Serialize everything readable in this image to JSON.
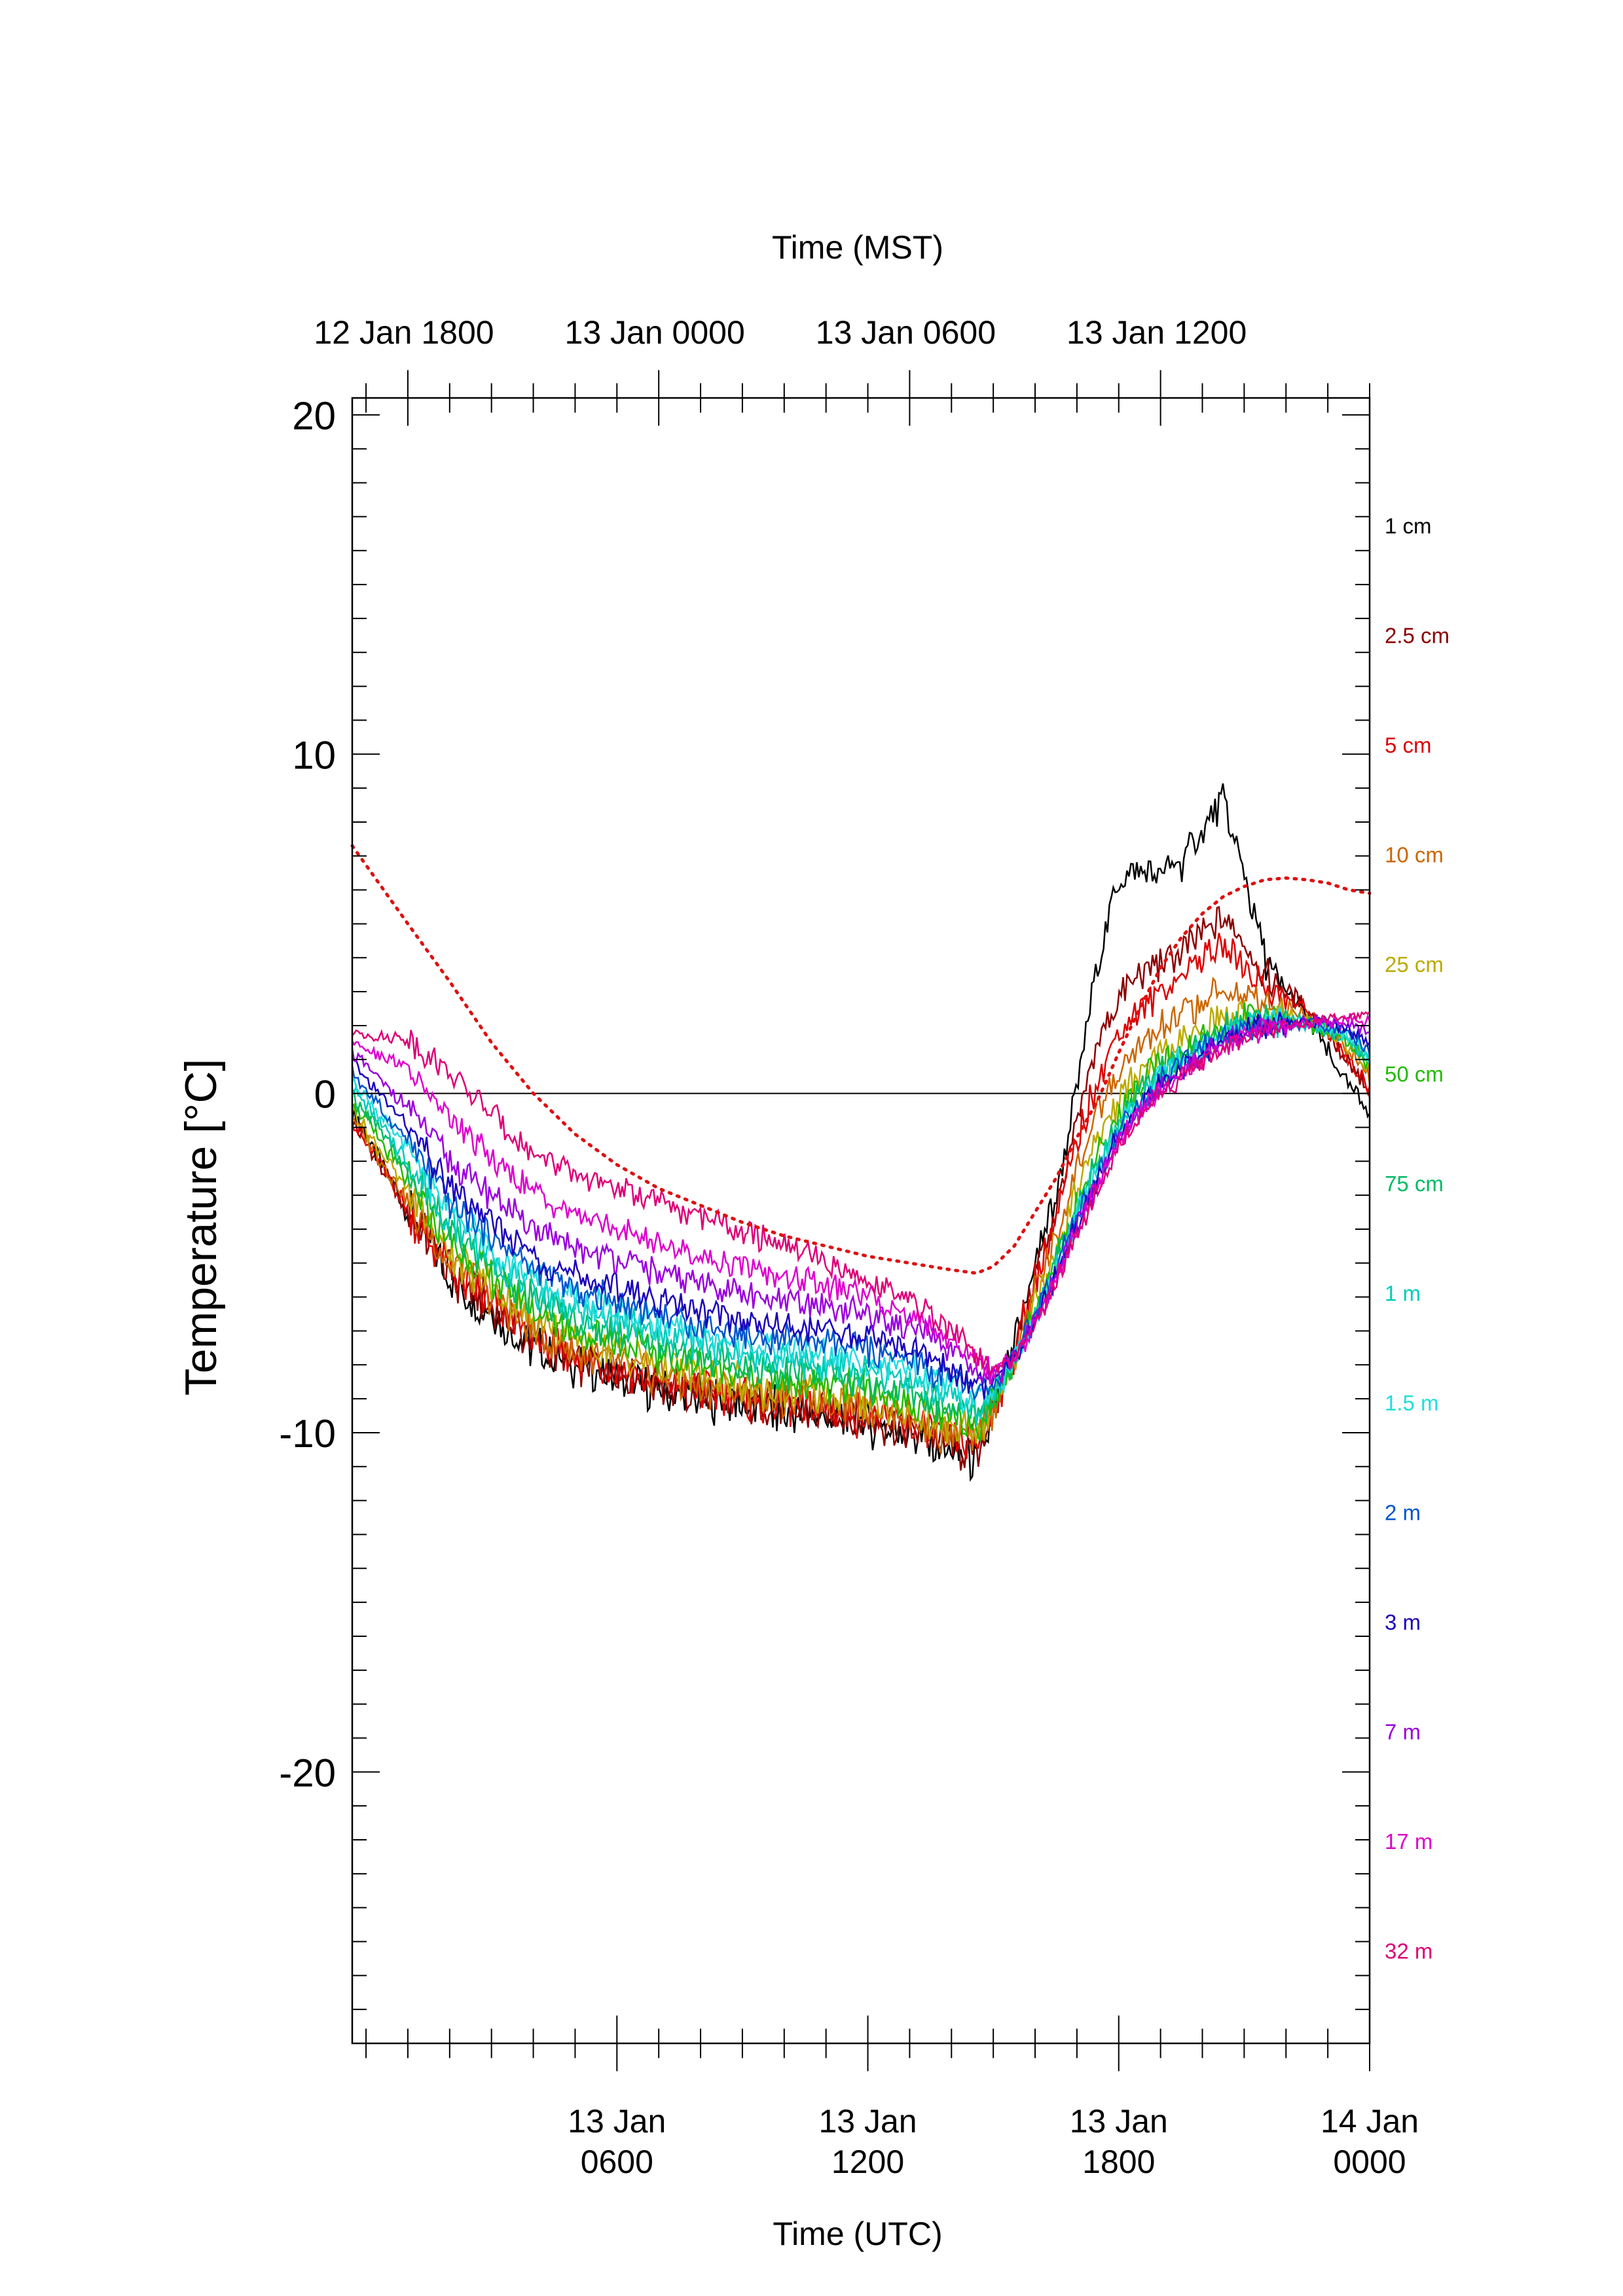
{
  "chart_data": {
    "type": "line",
    "ylabel": "Temperature [°C]",
    "xlabel_bottom": "Time (UTC)",
    "xlabel_top": "Time (MST)",
    "ylim": [
      -28,
      20.5
    ],
    "xlim_utc_hours": [
      -0.33,
      24
    ],
    "y_ticks": [
      {
        "value": 20,
        "label": "20"
      },
      {
        "value": 10,
        "label": "10"
      },
      {
        "value": 0,
        "label": "0"
      },
      {
        "value": -10,
        "label": "-10"
      },
      {
        "value": -20,
        "label": "-20"
      }
    ],
    "bottom_ticks": [
      {
        "utc_hour": 6,
        "line1": "13 Jan",
        "line2": "0600"
      },
      {
        "utc_hour": 12,
        "line1": "13 Jan",
        "line2": "1200"
      },
      {
        "utc_hour": 18,
        "line1": "13 Jan",
        "line2": "1800"
      },
      {
        "utc_hour": 24,
        "line1": "14 Jan",
        "line2": "0000"
      }
    ],
    "top_ticks": [
      {
        "utc_hour": 1,
        "label": "12 Jan 1800"
      },
      {
        "utc_hour": 7,
        "label": "13 Jan 0000"
      },
      {
        "utc_hour": 13,
        "label": "13 Jan 0600"
      },
      {
        "utc_hour": 19,
        "label": "13 Jan 1200"
      }
    ],
    "reference_line": {
      "y": 0
    },
    "legend_placement": "right",
    "x_utc_hours": [
      -0.33,
      1,
      2,
      3,
      4,
      5,
      6,
      7,
      8,
      9,
      10,
      11,
      12,
      13,
      14,
      14.6,
      15,
      15.5,
      16,
      16.5,
      17,
      17.5,
      18,
      18.5,
      19,
      19.5,
      20,
      20.5,
      21,
      21.5,
      22,
      22.5,
      23,
      23.5,
      24
    ],
    "series": [
      {
        "name": "1 cm",
        "color": "#000000",
        "values": [
          -0.5,
          -3.5,
          -5.5,
          -6.5,
          -7.5,
          -8,
          -8.3,
          -8.8,
          -9,
          -9.2,
          -9.4,
          -9.5,
          -9.7,
          -10,
          -10.6,
          -10.8,
          -9.5,
          -7.5,
          -5,
          -3,
          0,
          4,
          6.2,
          6.5,
          6.5,
          6.8,
          7.8,
          8.5,
          6.5,
          4,
          3,
          2.3,
          1.2,
          0.2,
          -0.5
        ]
      },
      {
        "name": "2.5 cm",
        "color": "#8b0000",
        "values": [
          -0.8,
          -3.5,
          -5.3,
          -6.3,
          -7.3,
          -7.9,
          -8.2,
          -8.6,
          -8.9,
          -9.1,
          -9.3,
          -9.4,
          -9.6,
          -9.9,
          -10.4,
          -10.6,
          -9.4,
          -7.6,
          -5.3,
          -3.5,
          -1,
          1.5,
          2.8,
          3.5,
          3.8,
          4.2,
          4.8,
          5.2,
          4.5,
          3.5,
          3,
          2.5,
          1.8,
          0.8,
          0
        ]
      },
      {
        "name": "5 cm",
        "color": "#dd0000",
        "values": [
          -0.8,
          -3.4,
          -5.2,
          -6.2,
          -7.2,
          -7.8,
          -8.1,
          -8.5,
          -8.8,
          -9,
          -9.2,
          -9.3,
          -9.5,
          -9.8,
          -10.3,
          -10.4,
          -9.3,
          -7.7,
          -5.5,
          -3.8,
          -1.5,
          0.5,
          1.8,
          2.5,
          3,
          3.5,
          4,
          4.3,
          3.8,
          3.2,
          2.8,
          2.4,
          1.8,
          0.9,
          0.2
        ]
      },
      {
        "name": "10 cm",
        "color": "#cc6600",
        "values": [
          -0.7,
          -3.2,
          -5,
          -6,
          -7,
          -7.6,
          -7.9,
          -8.3,
          -8.6,
          -8.8,
          -9,
          -9.1,
          -9.3,
          -9.6,
          -10.1,
          -10.2,
          -9.3,
          -7.8,
          -5.9,
          -4.2,
          -2.2,
          -0.6,
          0.6,
          1.4,
          1.9,
          2.3,
          2.7,
          3,
          2.9,
          2.7,
          2.6,
          2.3,
          1.9,
          1.2,
          0.5
        ]
      },
      {
        "name": "25 cm",
        "color": "#bbaa00",
        "values": [
          -0.5,
          -2.9,
          -4.7,
          -5.7,
          -6.7,
          -7.3,
          -7.6,
          -8,
          -8.3,
          -8.6,
          -8.8,
          -8.9,
          -9.1,
          -9.4,
          -9.9,
          -10,
          -9.2,
          -7.9,
          -6.2,
          -4.6,
          -2.8,
          -1.3,
          -0.2,
          0.6,
          1.1,
          1.5,
          1.9,
          2.2,
          2.3,
          2.3,
          2.3,
          2.1,
          1.9,
          1.4,
          0.7
        ]
      },
      {
        "name": "50 cm",
        "color": "#22bb00",
        "values": [
          -0.2,
          -2.6,
          -4.4,
          -5.4,
          -6.4,
          -7,
          -7.3,
          -7.7,
          -8,
          -8.3,
          -8.5,
          -8.6,
          -8.8,
          -9.1,
          -9.6,
          -9.8,
          -9,
          -7.9,
          -6.4,
          -4.9,
          -3.2,
          -1.8,
          -0.7,
          0.2,
          0.8,
          1.2,
          1.6,
          2,
          2.2,
          2.2,
          2.2,
          2.1,
          1.9,
          1.5,
          0.8
        ]
      },
      {
        "name": "75 cm",
        "color": "#00bb66",
        "values": [
          0,
          -2.3,
          -4.1,
          -5.1,
          -6.1,
          -6.7,
          -7,
          -7.4,
          -7.7,
          -8,
          -8.2,
          -8.3,
          -8.5,
          -8.8,
          -9.3,
          -9.5,
          -8.9,
          -7.9,
          -6.5,
          -5,
          -3.4,
          -2,
          -0.9,
          0,
          0.6,
          1.1,
          1.5,
          1.9,
          2.1,
          2.2,
          2.2,
          2.1,
          1.9,
          1.5,
          0.9
        ]
      },
      {
        "name": "1 m",
        "color": "#00ccbb",
        "values": [
          0.2,
          -2,
          -3.8,
          -4.8,
          -5.8,
          -6.4,
          -6.7,
          -7.1,
          -7.4,
          -7.7,
          -7.9,
          -8,
          -8.2,
          -8.5,
          -9,
          -9.3,
          -8.8,
          -7.9,
          -6.6,
          -5.1,
          -3.5,
          -2.2,
          -1,
          -0.1,
          0.5,
          1,
          1.4,
          1.8,
          2,
          2.1,
          2.1,
          2.1,
          1.9,
          1.6,
          1
        ]
      },
      {
        "name": "1.5 m",
        "color": "#22dddd",
        "values": [
          0.4,
          -1.7,
          -3.5,
          -4.5,
          -5.5,
          -6.1,
          -6.4,
          -6.8,
          -7.1,
          -7.4,
          -7.6,
          -7.7,
          -7.9,
          -8.2,
          -8.7,
          -9.1,
          -8.7,
          -7.9,
          -6.6,
          -5.2,
          -3.6,
          -2.3,
          -1.1,
          -0.2,
          0.5,
          1,
          1.4,
          1.8,
          2,
          2.1,
          2.1,
          2.1,
          2,
          1.7,
          1.1
        ]
      },
      {
        "name": "2 m",
        "color": "#0055cc",
        "values": [
          0.6,
          -1.4,
          -3.2,
          -4.2,
          -5.2,
          -5.8,
          -6.1,
          -6.5,
          -6.8,
          -7.1,
          -7.3,
          -7.4,
          -7.6,
          -7.9,
          -8.4,
          -8.9,
          -8.6,
          -7.8,
          -6.6,
          -5.2,
          -3.7,
          -2.4,
          -1.2,
          -0.3,
          0.4,
          0.9,
          1.3,
          1.7,
          1.9,
          2,
          2.1,
          2.1,
          2,
          1.8,
          1.2
        ]
      },
      {
        "name": "3 m",
        "color": "#1a00bb",
        "values": [
          0.9,
          -1,
          -2.8,
          -3.8,
          -4.8,
          -5.4,
          -5.7,
          -6.1,
          -6.4,
          -6.7,
          -6.9,
          -7,
          -7.2,
          -7.5,
          -8.1,
          -8.6,
          -8.5,
          -7.8,
          -6.6,
          -5.3,
          -3.8,
          -2.5,
          -1.3,
          -0.4,
          0.3,
          0.8,
          1.2,
          1.6,
          1.9,
          2,
          2.1,
          2.1,
          2.1,
          1.9,
          1.4
        ]
      },
      {
        "name": "7 m",
        "color": "#9900dd",
        "values": [
          1.2,
          -0.4,
          -2,
          -3,
          -4,
          -4.6,
          -4.9,
          -5.3,
          -5.6,
          -5.9,
          -6.2,
          -6.3,
          -6.5,
          -6.9,
          -7.6,
          -8.3,
          -8.4,
          -7.8,
          -6.7,
          -5.4,
          -3.9,
          -2.6,
          -1.4,
          -0.5,
          0.2,
          0.7,
          1.1,
          1.5,
          1.8,
          1.9,
          2,
          2.1,
          2.1,
          2.1,
          1.8
        ]
      },
      {
        "name": "17 m",
        "color": "#dd00cc",
        "values": [
          1.5,
          0.8,
          -0.8,
          -1.9,
          -2.9,
          -3.6,
          -4,
          -4.4,
          -4.8,
          -5.1,
          -5.4,
          -5.7,
          -6,
          -6.5,
          -7.2,
          -8,
          -8.3,
          -7.8,
          -6.8,
          -5.5,
          -4,
          -2.7,
          -1.5,
          -0.6,
          0.1,
          0.6,
          1,
          1.4,
          1.7,
          1.9,
          2,
          2.1,
          2.1,
          2.2,
          2.1
        ]
      },
      {
        "name": "32 m",
        "color": "#dd0077",
        "values": [
          1.8,
          1.6,
          0.6,
          -0.6,
          -1.8,
          -2.4,
          -2.8,
          -3.2,
          -3.6,
          -4.1,
          -4.5,
          -5,
          -5.5,
          -6.1,
          -7,
          -7.8,
          -8.2,
          -7.8,
          -6.9,
          -5.6,
          -4.1,
          -2.8,
          -1.6,
          -0.7,
          0,
          0.5,
          0.9,
          1.3,
          1.6,
          1.8,
          2,
          2.1,
          2.2,
          2.3,
          2.4
        ]
      },
      {
        "name": "",
        "color": "#dd1111",
        "style": "dotted",
        "values": [
          7.3,
          5,
          3.3,
          1.5,
          0,
          -1.2,
          -2.1,
          -2.8,
          -3.3,
          -3.8,
          -4.2,
          -4.5,
          -4.8,
          -5,
          -5.2,
          -5.3,
          -5.1,
          -4.5,
          -3.5,
          -2.5,
          -1.3,
          -0.2,
          1.2,
          2.5,
          3.7,
          4.6,
          5.3,
          5.8,
          6.1,
          6.3,
          6.35,
          6.3,
          6.2,
          6.0,
          5.9
        ]
      }
    ]
  }
}
